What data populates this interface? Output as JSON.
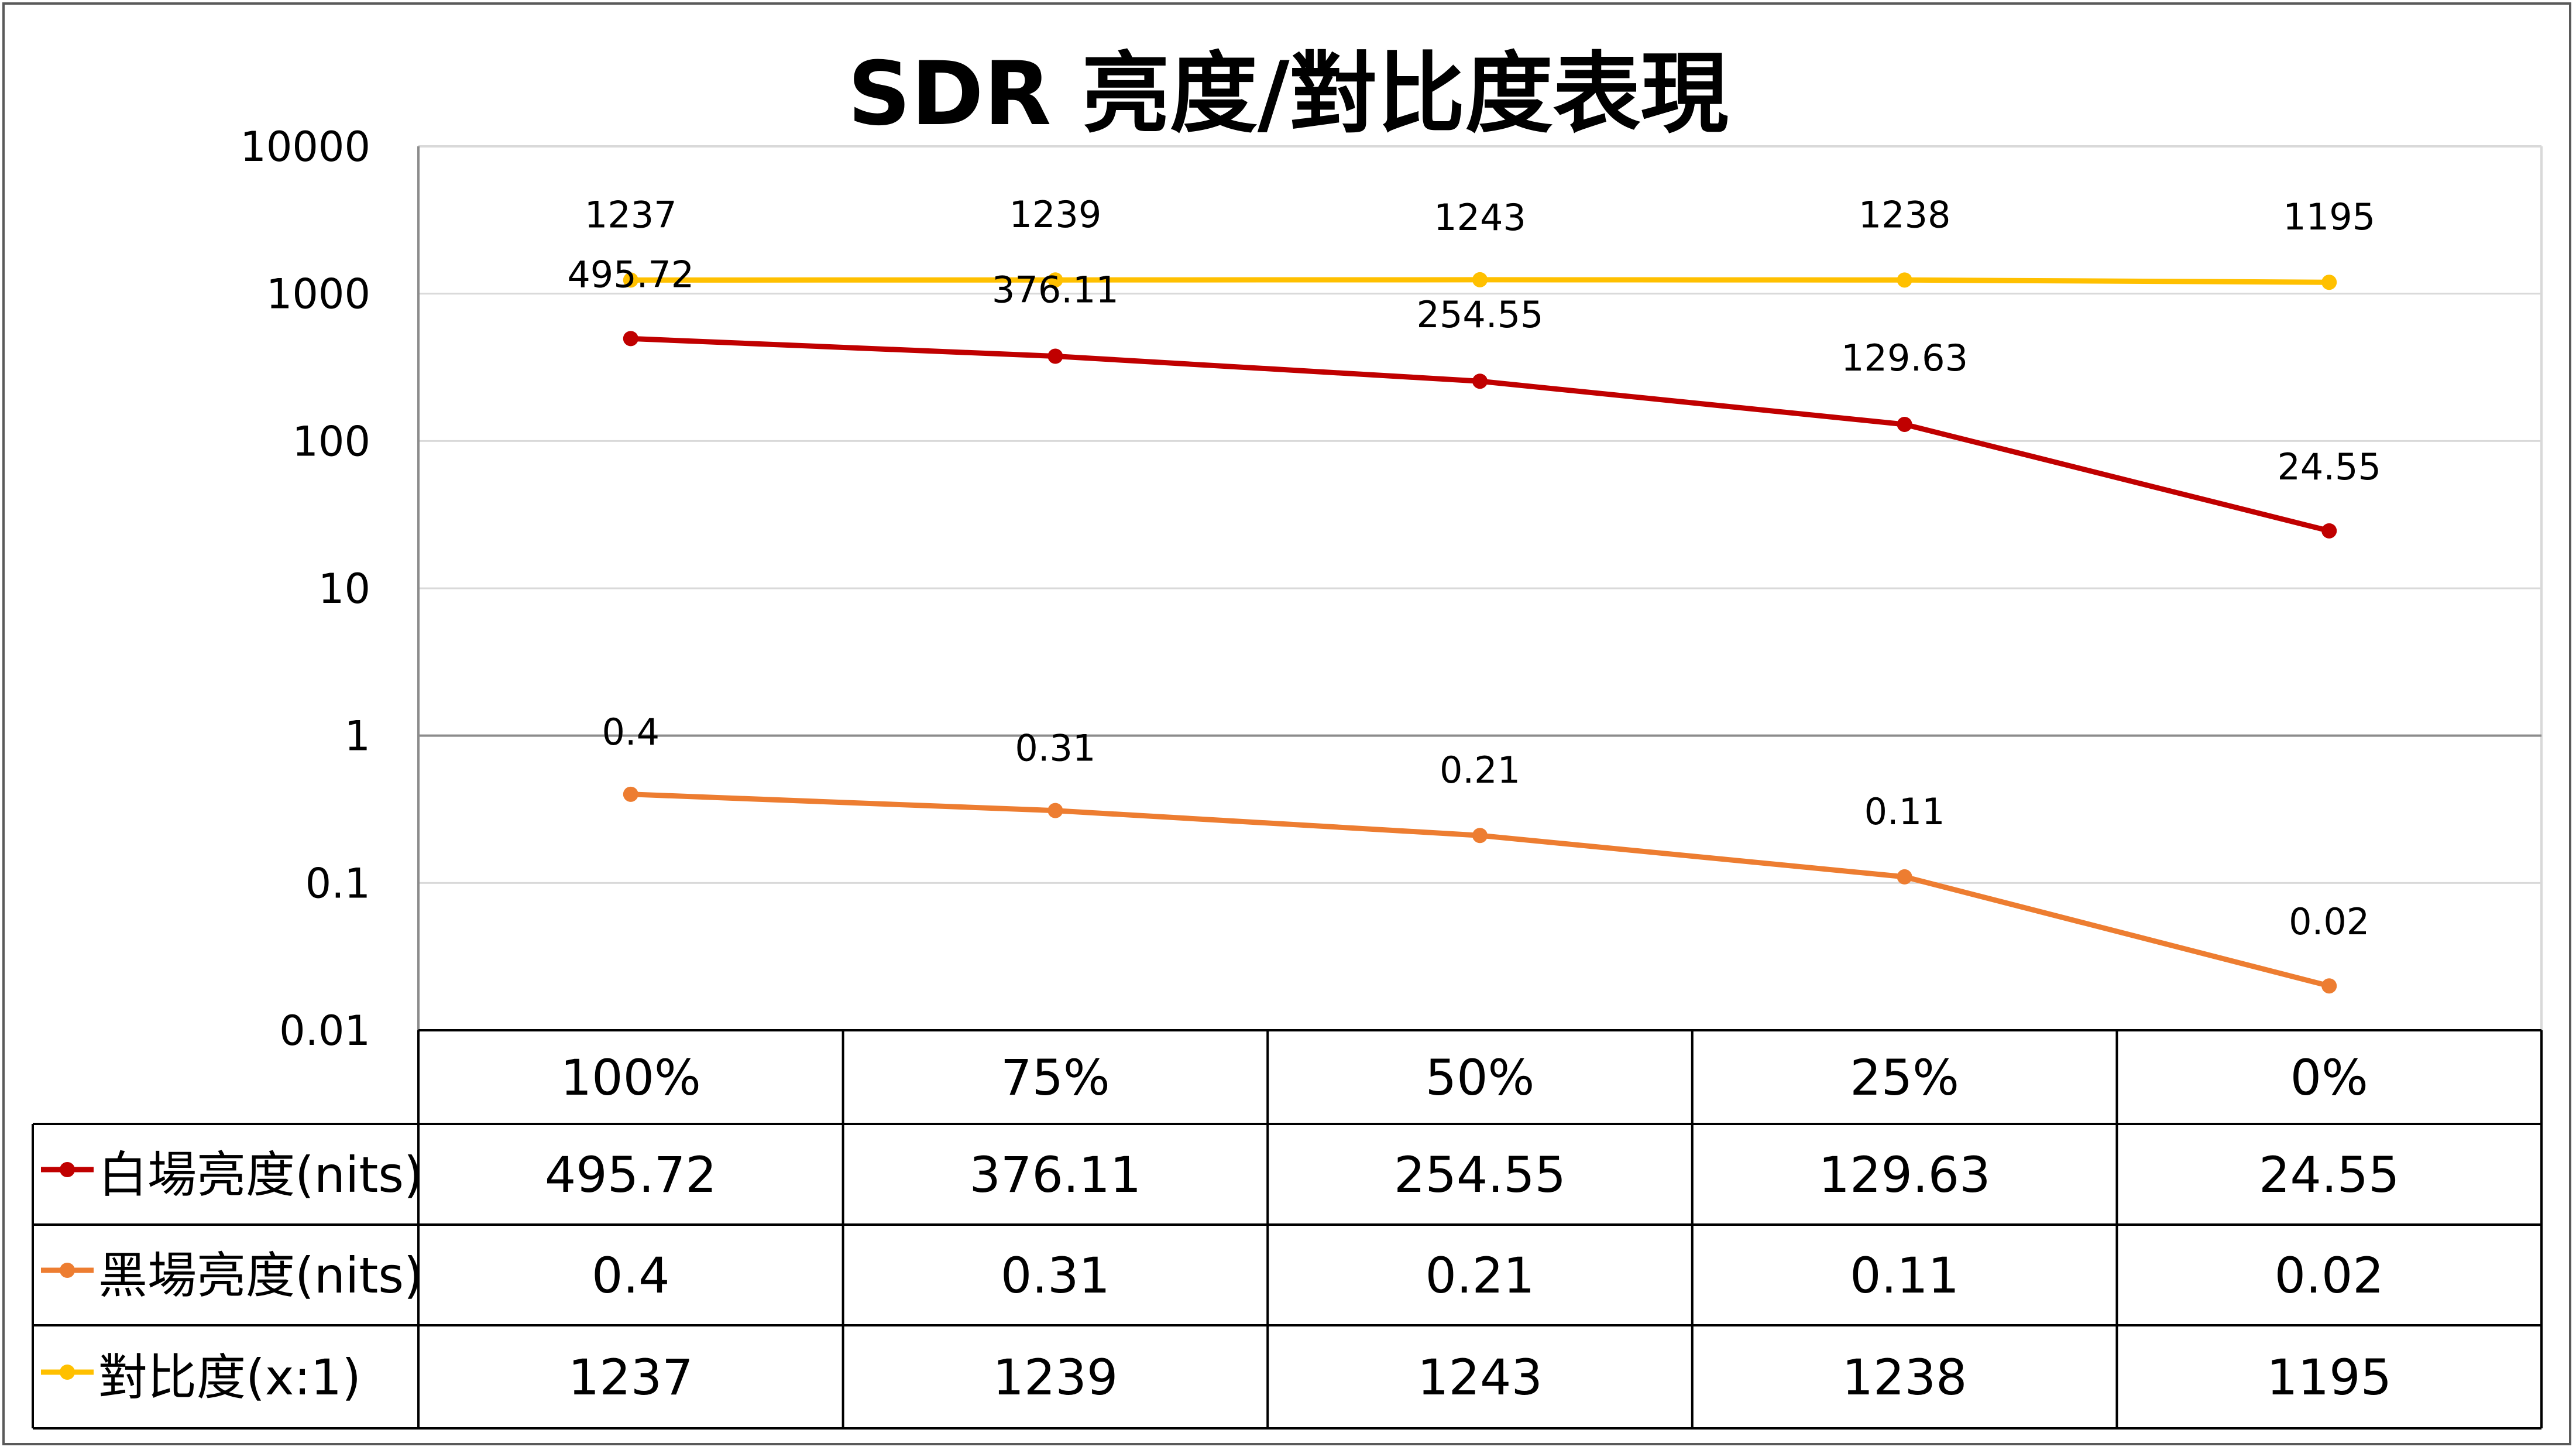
{
  "chart_data": {
    "type": "line",
    "title": "SDR 亮度/對比度表現",
    "categories": [
      "100%",
      "75%",
      "50%",
      "25%",
      "0%"
    ],
    "yscale": "log",
    "ylim": [
      0.01,
      10000
    ],
    "yticks": [
      "10000",
      "1000",
      "100",
      "10",
      "1",
      "0.1",
      "0.01"
    ],
    "grid": true,
    "legend_placement": "data-table",
    "series": [
      {
        "name": "白場亮度(nits)",
        "color": "#C00000",
        "values": [
          495.72,
          376.11,
          254.55,
          129.63,
          24.55
        ],
        "labels": [
          "495.72",
          "376.11",
          "254.55",
          "129.63",
          "24.55"
        ]
      },
      {
        "name": "黑場亮度(nits)",
        "color": "#ED7D31",
        "values": [
          0.4,
          0.31,
          0.21,
          0.11,
          0.02
        ],
        "labels": [
          "0.4",
          "0.31",
          "0.21",
          "0.11",
          "0.02"
        ]
      },
      {
        "name": "對比度(x:1)",
        "color": "#FFC000",
        "values": [
          1237,
          1239,
          1243,
          1238,
          1195
        ],
        "labels": [
          "1237",
          "1239",
          "1243",
          "1238",
          "1195"
        ]
      }
    ]
  }
}
